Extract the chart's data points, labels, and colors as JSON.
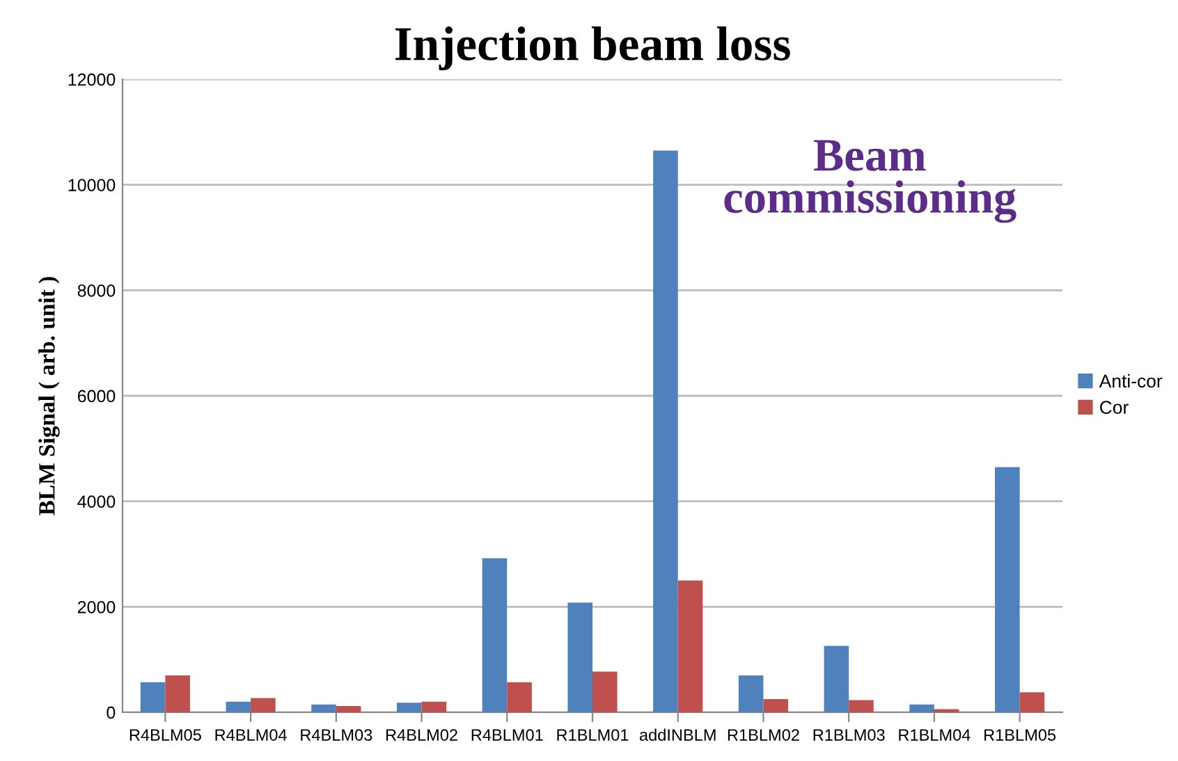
{
  "chart_data": {
    "type": "bar",
    "title": "Injection beam loss",
    "ylabel": "BLM Signal ( arb. unit )",
    "categories": [
      "R4BLM05",
      "R4BLM04",
      "R4BLM03",
      "R4BLM02",
      "R4BLM01",
      "R1BLM01",
      "addINBLM",
      "R1BLM02",
      "R1BLM03",
      "R1BLM04",
      "R1BLM05"
    ],
    "series": [
      {
        "name": "Anti-cor",
        "color": "#4f81bd",
        "values": [
          570,
          200,
          150,
          180,
          2920,
          2080,
          10650,
          700,
          1260,
          150,
          4650
        ]
      },
      {
        "name": "Cor",
        "color": "#c0504d",
        "values": [
          700,
          270,
          120,
          200,
          570,
          770,
          2500,
          250,
          230,
          60,
          380
        ]
      }
    ],
    "ylim": [
      0,
      12000
    ],
    "yticks": [
      0,
      2000,
      4000,
      6000,
      8000,
      10000,
      12000
    ],
    "grid": "y",
    "legend": "right",
    "annotations": [
      "Beam\ncommissioning"
    ]
  }
}
